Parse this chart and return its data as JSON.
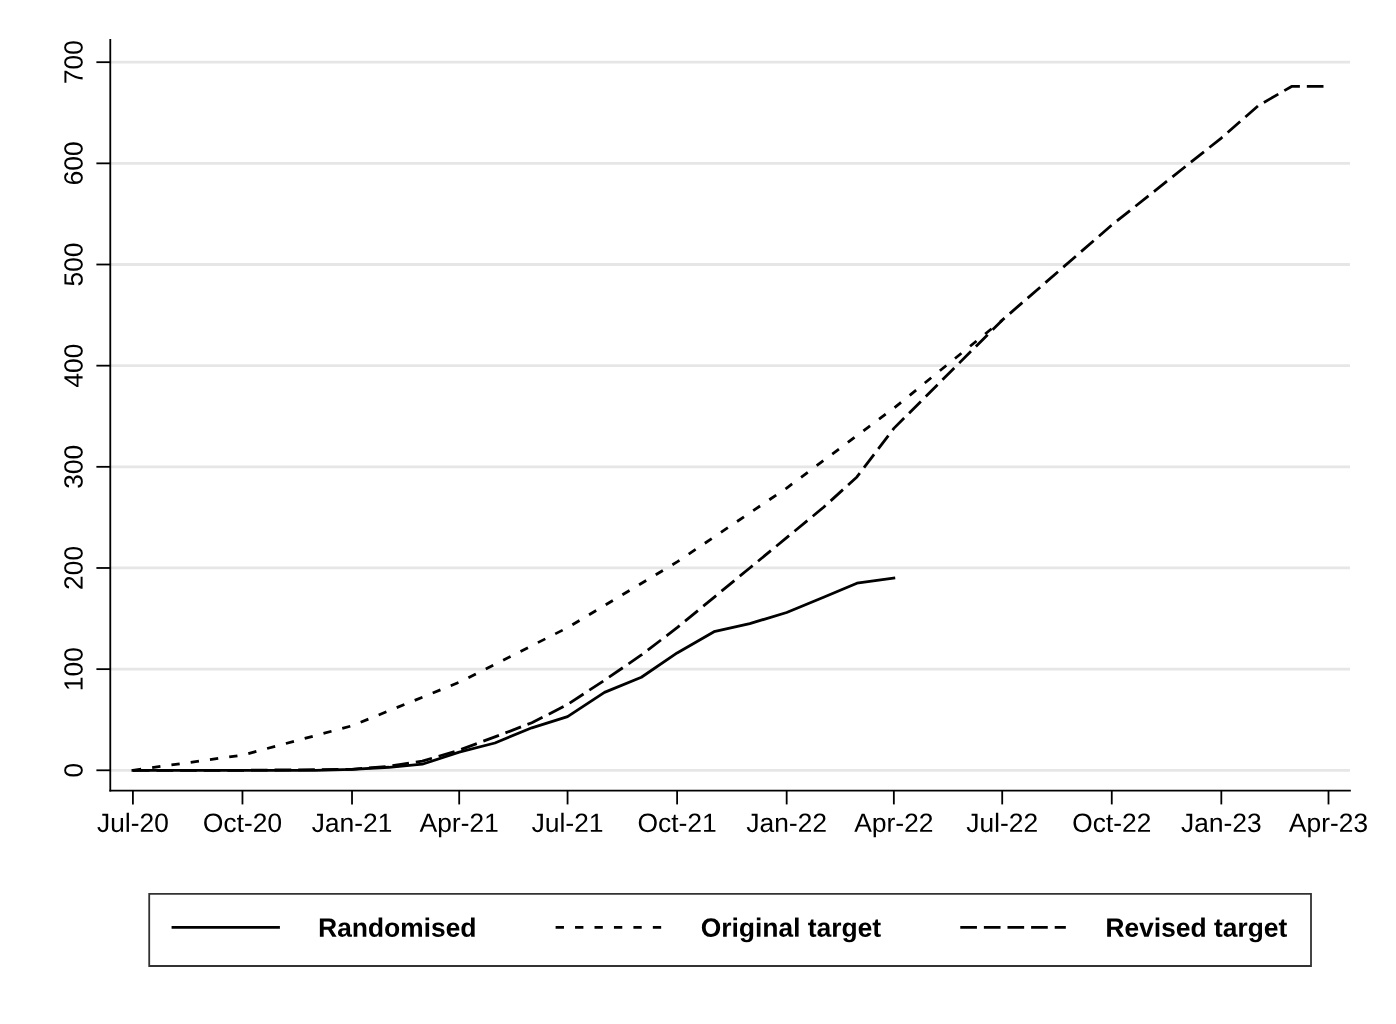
{
  "chart_data": {
    "type": "line",
    "series": [
      {
        "name": "Randomised",
        "color": "#000000",
        "line_style": "solid",
        "x": [
          "2020-07",
          "2020-08",
          "2020-09",
          "2020-10",
          "2020-11",
          "2020-12",
          "2021-01",
          "2021-02",
          "2021-03",
          "2021-04",
          "2021-05",
          "2021-06",
          "2021-07",
          "2021-08",
          "2021-09",
          "2021-10",
          "2021-11",
          "2021-12",
          "2022-01",
          "2022-02",
          "2022-03",
          "2022-04"
        ],
        "values": [
          0,
          0,
          0,
          0,
          0,
          0,
          1,
          3,
          6,
          18,
          27,
          42,
          53,
          77,
          92,
          116,
          137,
          145,
          156,
          171,
          185,
          190
        ]
      },
      {
        "name": "Original target",
        "color": "#000000",
        "line_style": "dotted",
        "x": [
          "2020-07",
          "2020-10",
          "2021-01",
          "2021-04",
          "2021-07",
          "2021-10",
          "2022-01",
          "2022-04",
          "2022-07"
        ],
        "values": [
          0,
          15,
          44,
          87,
          141,
          206,
          279,
          358,
          445
        ]
      },
      {
        "name": "Revised target",
        "color": "#000000",
        "line_style": "dashed",
        "x": [
          "2020-07",
          "2020-10",
          "2021-01",
          "2021-02",
          "2021-03",
          "2021-04",
          "2021-05",
          "2021-06",
          "2021-07",
          "2021-08",
          "2021-09",
          "2021-10",
          "2021-11",
          "2021-12",
          "2022-01",
          "2022-02",
          "2022-03",
          "2022-04",
          "2022-07",
          "2022-10",
          "2023-01",
          "2023-02",
          "2023-03",
          "2023-04"
        ],
        "values": [
          0,
          0,
          1,
          4,
          9,
          20,
          33,
          47,
          65,
          89,
          114,
          141,
          171,
          200,
          230,
          260,
          290,
          338,
          445,
          539,
          625,
          657,
          676,
          676
        ]
      }
    ],
    "xlim": [
      "2020-06-12",
      "2023-04-19"
    ],
    "xticks": [
      {
        "value": "2020-07-01",
        "label": "Jul-20"
      },
      {
        "value": "2020-10-01",
        "label": "Oct-20"
      },
      {
        "value": "2021-01-01",
        "label": "Jan-21"
      },
      {
        "value": "2021-04-01",
        "label": "Apr-21"
      },
      {
        "value": "2021-07-01",
        "label": "Jul-21"
      },
      {
        "value": "2021-10-01",
        "label": "Oct-21"
      },
      {
        "value": "2022-01-01",
        "label": "Jan-22"
      },
      {
        "value": "2022-04-01",
        "label": "Apr-22"
      },
      {
        "value": "2022-07-01",
        "label": "Jul-22"
      },
      {
        "value": "2022-10-01",
        "label": "Oct-22"
      },
      {
        "value": "2023-01-01",
        "label": "Jan-23"
      },
      {
        "value": "2023-04-01",
        "label": "Apr-23"
      }
    ],
    "ylim": [
      -20,
      722
    ],
    "yticks": [
      0,
      100,
      200,
      300,
      400,
      500,
      600,
      700
    ],
    "grid": "y",
    "legend": "bottom",
    "marker": "none"
  }
}
